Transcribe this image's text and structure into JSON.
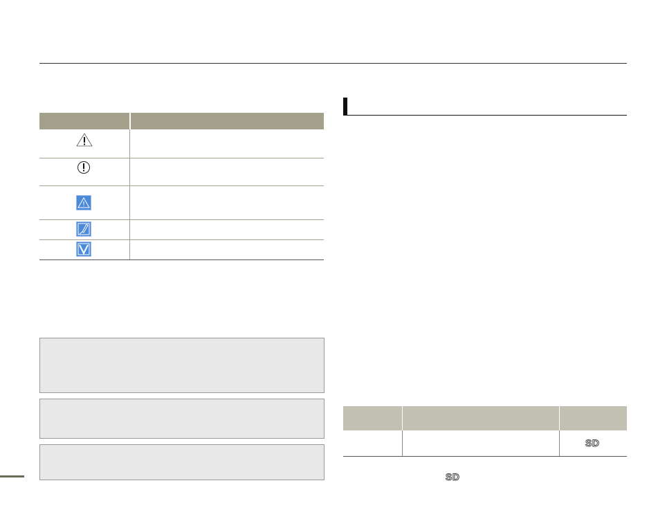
{
  "icons_table": {
    "rows": [
      {
        "icon": "warning-triangle-icon"
      },
      {
        "icon": "caution-circle-icon"
      },
      {
        "icon": "warning-blue-icon"
      },
      {
        "icon": "note-pencil-icon"
      },
      {
        "icon": "checkmark-icon"
      }
    ]
  },
  "media_table": {
    "badge": "SD"
  },
  "footnote": {
    "badge": "SD"
  },
  "colors": {
    "header": "#a3a18c",
    "media_header": "#c2c0b2",
    "icon_blue": "#4a8ad8",
    "note_box": "#e8e8e8"
  }
}
